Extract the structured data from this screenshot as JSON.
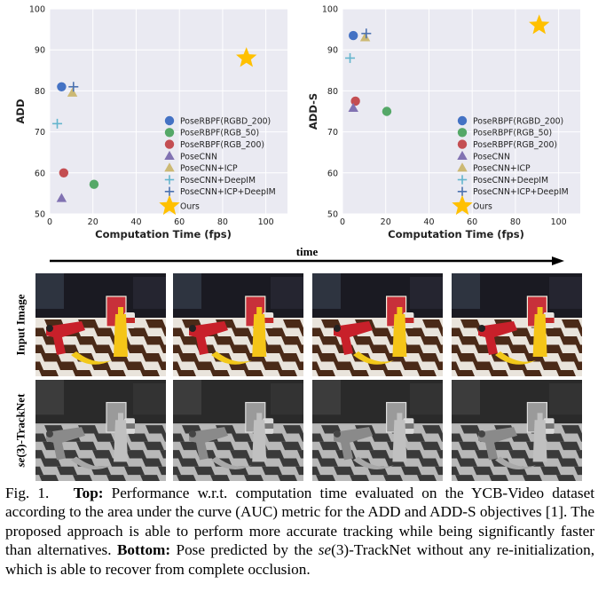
{
  "chart_data": [
    {
      "type": "scatter",
      "id": "add",
      "title": "",
      "xlabel": "Computation Time (fps)",
      "ylabel": "ADD",
      "xlim": [
        0,
        110
      ],
      "ylim": [
        50,
        100
      ],
      "xticks": [
        "0",
        "20",
        "40",
        "60",
        "80",
        "100"
      ],
      "yticks": [
        "50",
        "60",
        "70",
        "80",
        "90",
        "100"
      ],
      "grid": true,
      "legend_position": "lower-right",
      "series": [
        {
          "name": "PoseRBPF(RGBD_200)",
          "marker": "circle",
          "color": "#4472c4",
          "x": 5.5,
          "y": 81
        },
        {
          "name": "PoseRBPF(RGB_50)",
          "marker": "circle",
          "color": "#55a868",
          "x": 20.5,
          "y": 57.2
        },
        {
          "name": "PoseRBPF(RGB_200)",
          "marker": "circle",
          "color": "#c44e52",
          "x": 6.5,
          "y": 60
        },
        {
          "name": "PoseCNN",
          "marker": "triangle",
          "color": "#8172b2",
          "x": 5.5,
          "y": 53.8
        },
        {
          "name": "PoseCNN+ICP",
          "marker": "triangle",
          "color": "#ccb974",
          "x": 10.5,
          "y": 79.5
        },
        {
          "name": "PoseCNN+DeepIM",
          "marker": "plus",
          "color": "#64b5cd",
          "x": 3.5,
          "y": 72
        },
        {
          "name": "PoseCNN+ICP+DeepIM",
          "marker": "plus",
          "color": "#4c72b0",
          "x": 11,
          "y": 81
        },
        {
          "name": "Ours",
          "marker": "star",
          "color": "#ffc000",
          "x": 91,
          "y": 88
        }
      ]
    },
    {
      "type": "scatter",
      "id": "adds",
      "title": "",
      "xlabel": "Computation Time (fps)",
      "ylabel": "ADD-S",
      "xlim": [
        0,
        110
      ],
      "ylim": [
        50,
        100
      ],
      "xticks": [
        "0",
        "20",
        "40",
        "60",
        "80",
        "100"
      ],
      "yticks": [
        "50",
        "60",
        "70",
        "80",
        "90",
        "100"
      ],
      "grid": true,
      "legend_position": "lower-right",
      "series": [
        {
          "name": "PoseRBPF(RGBD_200)",
          "marker": "circle",
          "color": "#4472c4",
          "x": 5,
          "y": 93.5
        },
        {
          "name": "PoseRBPF(RGB_50)",
          "marker": "circle",
          "color": "#55a868",
          "x": 20.5,
          "y": 75
        },
        {
          "name": "PoseRBPF(RGB_200)",
          "marker": "circle",
          "color": "#c44e52",
          "x": 6,
          "y": 77.5
        },
        {
          "name": "PoseCNN",
          "marker": "triangle",
          "color": "#8172b2",
          "x": 5,
          "y": 75.8
        },
        {
          "name": "PoseCNN+ICP",
          "marker": "triangle",
          "color": "#ccb974",
          "x": 10.5,
          "y": 93
        },
        {
          "name": "PoseCNN+DeepIM",
          "marker": "plus",
          "color": "#64b5cd",
          "x": 3.5,
          "y": 88
        },
        {
          "name": "PoseCNN+ICP+DeepIM",
          "marker": "plus",
          "color": "#4c72b0",
          "x": 11,
          "y": 94
        },
        {
          "name": "Ours",
          "marker": "star",
          "color": "#ffc000",
          "x": 91,
          "y": 96
        }
      ]
    }
  ],
  "timeline": {
    "label": "time"
  },
  "rows": {
    "input_label": "Input Image",
    "tracknet_label_italic": "se",
    "tracknet_label_rest": "(3)-TrackNet"
  },
  "colors": {
    "plot_bg": "#eaeaf2",
    "grid": "#ffffff",
    "drill_red": "#c8202a",
    "banana": "#f2c81a",
    "mustard": "#f5c518",
    "board_dark": "#4a2a18",
    "board_light": "#e9e4dc"
  },
  "caption": {
    "fig_label": "Fig. 1.",
    "top_label": "Top:",
    "top_text": " Performance w.r.t. computation time evaluated on the YCB-Video dataset according to the area under the curve (AUC) metric for the ADD and ADD-S objectives [1]. The proposed approach is able to perform more accurate tracking while being significantly faster than alternatives.",
    "bottom_label": "Bottom:",
    "bottom_text_a": " Pose predicted by the ",
    "bottom_text_it": "se",
    "bottom_text_b": "(3)-TrackNet without any re-initialization, which is able to recover from complete occlusion."
  }
}
